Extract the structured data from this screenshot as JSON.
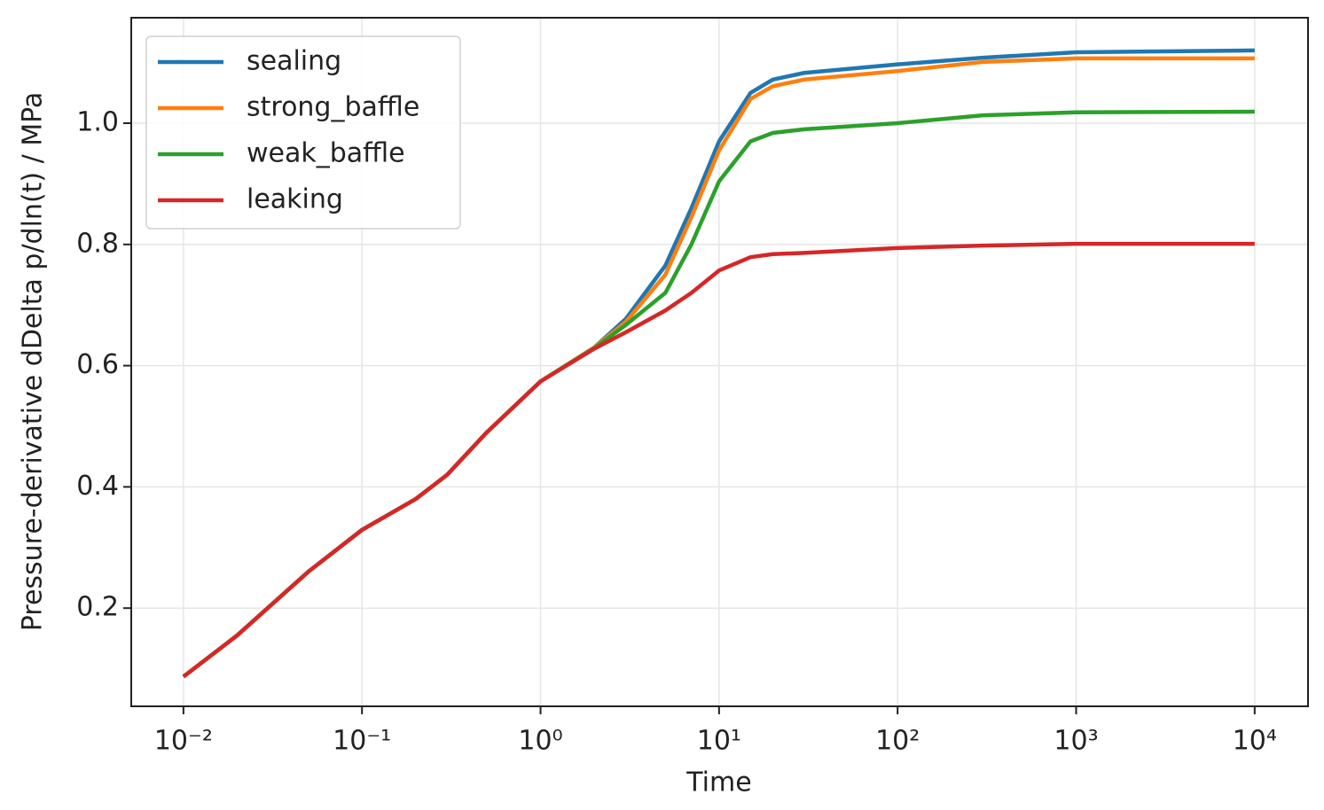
{
  "chart_data": {
    "type": "line",
    "x_label": "Time",
    "y_label": "Pressure-derivative dDelta p/dln(t) / MPa",
    "x_scale": "log",
    "grid": true,
    "legend": "upper left",
    "x": [
      0.01,
      0.02,
      0.05,
      0.1,
      0.2,
      0.3,
      0.5,
      1,
      2,
      3,
      5,
      7,
      10,
      15,
      20,
      30,
      100,
      300,
      1000,
      10000
    ],
    "series": [
      {
        "name": "sealing",
        "color": "#1f77b4",
        "values": [
          0.087,
          0.155,
          0.26,
          0.329,
          0.38,
          0.42,
          0.49,
          0.574,
          0.63,
          0.677,
          0.765,
          0.86,
          0.97,
          1.05,
          1.072,
          1.083,
          1.097,
          1.108,
          1.117,
          1.12
        ]
      },
      {
        "name": "strong_baffle",
        "color": "#ff7f0e",
        "values": [
          0.087,
          0.155,
          0.26,
          0.329,
          0.38,
          0.42,
          0.49,
          0.574,
          0.63,
          0.672,
          0.75,
          0.845,
          0.955,
          1.04,
          1.061,
          1.072,
          1.086,
          1.101,
          1.107,
          1.107
        ]
      },
      {
        "name": "weak_baffle",
        "color": "#2ca02c",
        "values": [
          0.087,
          0.155,
          0.26,
          0.329,
          0.38,
          0.42,
          0.49,
          0.574,
          0.629,
          0.667,
          0.72,
          0.8,
          0.904,
          0.97,
          0.984,
          0.99,
          1.0,
          1.013,
          1.018,
          1.019
        ]
      },
      {
        "name": "leaking",
        "color": "#d62728",
        "values": [
          0.087,
          0.155,
          0.26,
          0.329,
          0.38,
          0.42,
          0.49,
          0.574,
          0.628,
          0.655,
          0.691,
          0.72,
          0.757,
          0.779,
          0.784,
          0.786,
          0.794,
          0.798,
          0.801,
          0.801
        ]
      }
    ],
    "xlim": [
      0.0051,
      19900
    ],
    "ylim": [
      0.038,
      1.174
    ],
    "xticks": [
      {
        "value": 0.01,
        "label": "10⁻²"
      },
      {
        "value": 0.1,
        "label": "10⁻¹"
      },
      {
        "value": 1,
        "label": "10⁰"
      },
      {
        "value": 10,
        "label": "10¹"
      },
      {
        "value": 100,
        "label": "10²"
      },
      {
        "value": 1000,
        "label": "10³"
      },
      {
        "value": 10000,
        "label": "10⁴"
      }
    ],
    "yticks": [
      0.2,
      0.4,
      0.6,
      0.8,
      {
        "value": 1,
        "label": "1.0"
      }
    ]
  }
}
